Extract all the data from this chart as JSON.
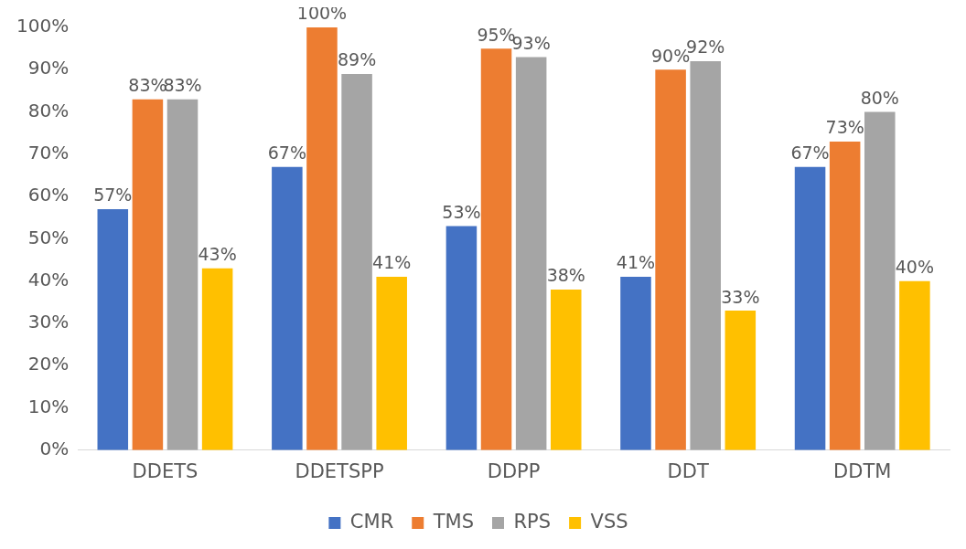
{
  "chart_data": {
    "type": "bar",
    "categories": [
      "DDETS",
      "DDETSPP",
      "DDPP",
      "DDT",
      "DDTM"
    ],
    "series": [
      {
        "name": "CMR",
        "color": "#4472c4",
        "values": [
          57,
          67,
          53,
          41,
          67
        ],
        "value_labels": [
          "57%",
          "67%",
          "53%",
          "41%",
          "67%"
        ]
      },
      {
        "name": "TMS",
        "color": "#ed7d31",
        "values": [
          83,
          100,
          95,
          90,
          73
        ],
        "value_labels": [
          "83%",
          "100%",
          "95%",
          "90%",
          "73%"
        ]
      },
      {
        "name": "RPS",
        "color": "#a5a5a5",
        "values": [
          83,
          89,
          93,
          92,
          80
        ],
        "value_labels": [
          "83%",
          "89%",
          "93%",
          "92%",
          "80%"
        ]
      },
      {
        "name": "VSS",
        "color": "#ffc000",
        "values": [
          43,
          41,
          38,
          33,
          40
        ],
        "value_labels": [
          "43%",
          "41%",
          "38%",
          "33%",
          "40%"
        ]
      }
    ],
    "ylim": [
      0,
      100
    ],
    "yticks": [
      {
        "value": 0,
        "label": "0%"
      },
      {
        "value": 10,
        "label": "10%"
      },
      {
        "value": 20,
        "label": "20%"
      },
      {
        "value": 30,
        "label": "30%"
      },
      {
        "value": 40,
        "label": "40%"
      },
      {
        "value": 50,
        "label": "50%"
      },
      {
        "value": 60,
        "label": "60%"
      },
      {
        "value": 70,
        "label": "70%"
      },
      {
        "value": 80,
        "label": "80%"
      },
      {
        "value": 90,
        "label": "90%"
      },
      {
        "value": 100,
        "label": "100%"
      }
    ],
    "grid": false,
    "legend": "bottom"
  }
}
